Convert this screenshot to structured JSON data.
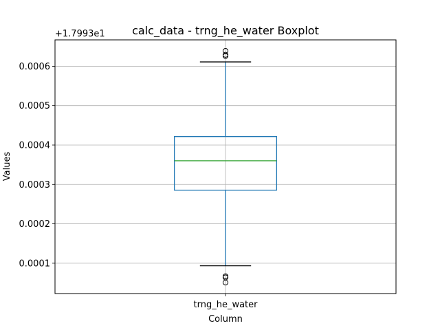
{
  "chart_data": {
    "type": "box",
    "title": "calc_data - trng_he_water Boxplot",
    "xlabel": "Column",
    "ylabel": "Values",
    "offset_label": "+1.7993e1",
    "categories": [
      "trng_he_water"
    ],
    "ylim": [
      2.3e-05,
      0.000667
    ],
    "yticks": [
      {
        "value": 0.0001,
        "label": "0.0001"
      },
      {
        "value": 0.0002,
        "label": "0.0002"
      },
      {
        "value": 0.0003,
        "label": "0.0003"
      },
      {
        "value": 0.0004,
        "label": "0.0004"
      },
      {
        "value": 0.0005,
        "label": "0.0005"
      },
      {
        "value": 0.0006,
        "label": "0.0006"
      }
    ],
    "grid": true,
    "boxes": [
      {
        "category": "trng_he_water",
        "whisker_low": 9.35e-05,
        "q1": 0.0002855,
        "median": 0.00036,
        "q3": 0.0004215,
        "whisker_high": 0.000611,
        "outliers": [
          5.1e-05,
          6.4e-05,
          6.7e-05,
          0.000626,
          0.000629,
          0.000639
        ]
      }
    ],
    "colors": {
      "box": "#1f77b4",
      "whisker": "#1f77b4",
      "median": "#2ca02c",
      "cap": "#000000",
      "outlier": "#000000",
      "grid": "#b0b0b0"
    }
  }
}
